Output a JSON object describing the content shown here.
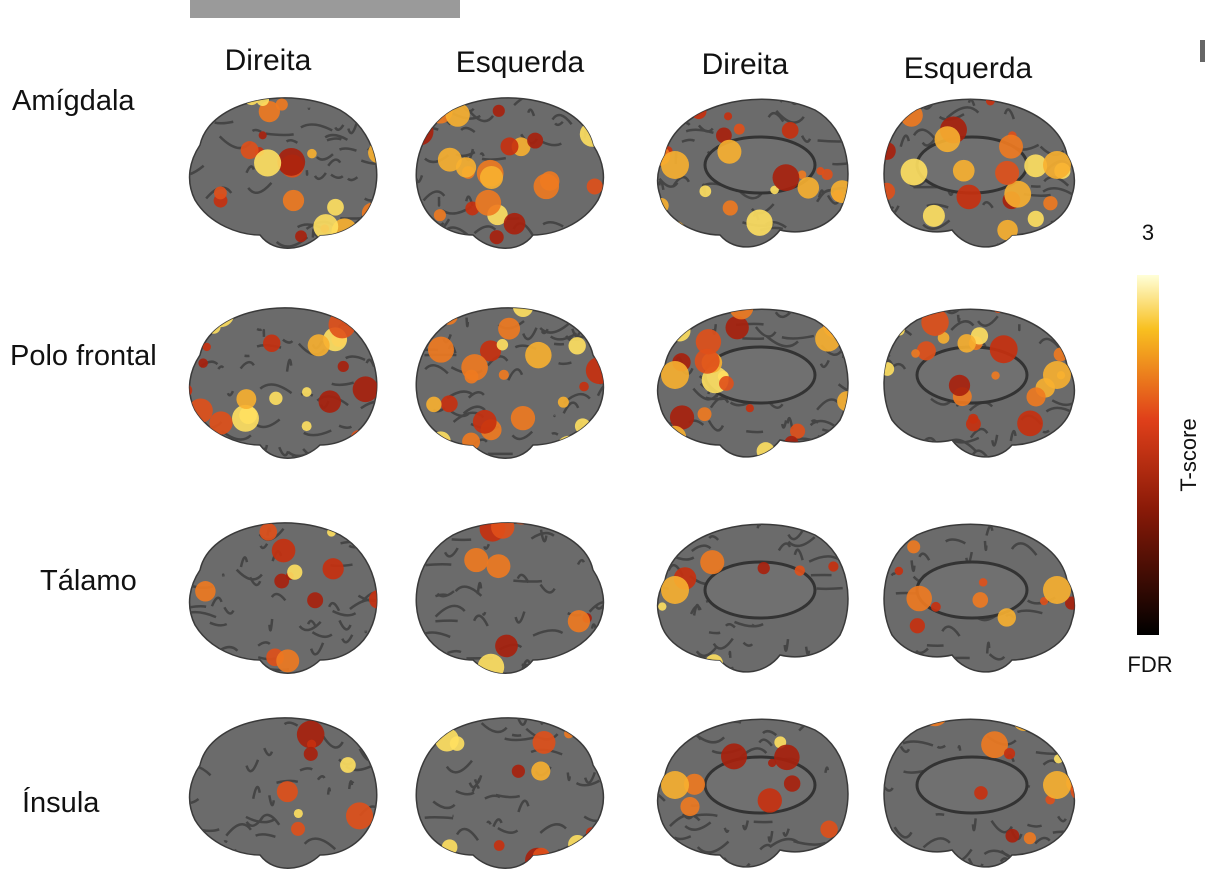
{
  "columns": [
    "Direita",
    "Esquerda",
    "Direita",
    "Esquerda"
  ],
  "rows": [
    "Amígdala",
    "Polo frontal",
    "Tálamo",
    "Ínsula"
  ],
  "colorbar": {
    "max_label": "3",
    "title": "T-score",
    "min_label": "FDR"
  }
}
